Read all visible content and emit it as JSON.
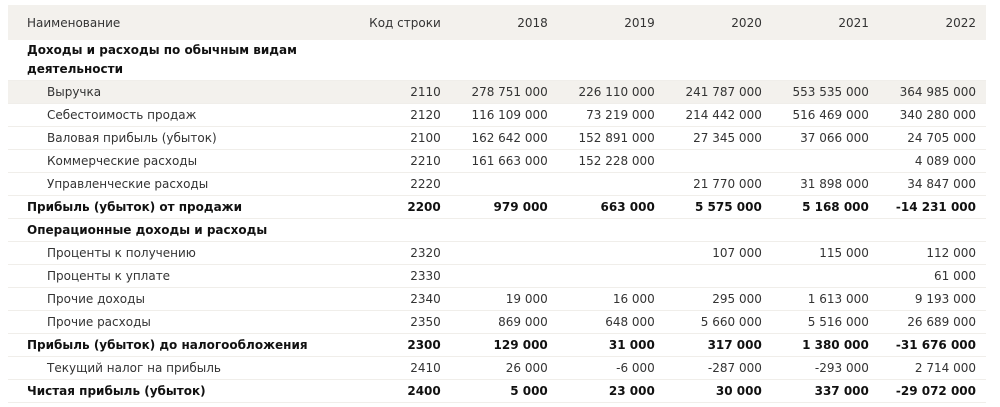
{
  "header": {
    "name": "Наименование",
    "code": "Код строки",
    "years": [
      "2018",
      "2019",
      "2020",
      "2021",
      "2022"
    ]
  },
  "rows": [
    {
      "type": "section",
      "name": "Доходы и расходы по обычным видам деятельности",
      "code": "",
      "values": [
        "",
        "",
        "",
        "",
        ""
      ]
    },
    {
      "type": "sub",
      "name": "Выручка",
      "code": "2110",
      "values": [
        "278 751 000",
        "226 110 000",
        "241 787 000",
        "553 535 000",
        "364 985 000"
      ]
    },
    {
      "type": "sub",
      "name": "Себестоимость продаж",
      "code": "2120",
      "values": [
        "116 109 000",
        "73 219 000",
        "214 442 000",
        "516 469 000",
        "340 280 000"
      ]
    },
    {
      "type": "sub",
      "name": "Валовая прибыль (убыток)",
      "code": "2100",
      "values": [
        "162 642 000",
        "152 891 000",
        "27 345 000",
        "37 066 000",
        "24 705 000"
      ]
    },
    {
      "type": "sub",
      "name": "Коммерческие расходы",
      "code": "2210",
      "values": [
        "161 663 000",
        "152 228 000",
        "",
        "",
        "4 089 000"
      ]
    },
    {
      "type": "sub",
      "name": "Управленческие расходы",
      "code": "2220",
      "values": [
        "",
        "",
        "21 770 000",
        "31 898 000",
        "34 847 000"
      ]
    },
    {
      "type": "bold",
      "name": "Прибыль (убыток) от продажи",
      "code": "2200",
      "values": [
        "979 000",
        "663 000",
        "5 575 000",
        "5 168 000",
        "-14 231 000"
      ]
    },
    {
      "type": "section",
      "name": "Операционные доходы и расходы",
      "code": "",
      "values": [
        "",
        "",
        "",
        "",
        ""
      ]
    },
    {
      "type": "sub",
      "name": "Проценты к получению",
      "code": "2320",
      "values": [
        "",
        "",
        "107 000",
        "115 000",
        "112 000"
      ]
    },
    {
      "type": "sub",
      "name": "Проценты к уплате",
      "code": "2330",
      "values": [
        "",
        "",
        "",
        "",
        "61 000"
      ]
    },
    {
      "type": "sub",
      "name": "Прочие доходы",
      "code": "2340",
      "values": [
        "19 000",
        "16 000",
        "295 000",
        "1 613 000",
        "9 193 000"
      ]
    },
    {
      "type": "sub",
      "name": "Прочие расходы",
      "code": "2350",
      "values": [
        "869 000",
        "648 000",
        "5 660 000",
        "5 516 000",
        "26 689 000"
      ]
    },
    {
      "type": "bold",
      "name": "Прибыль (убыток) до налогообложения",
      "code": "2300",
      "values": [
        "129 000",
        "31 000",
        "317 000",
        "1 380 000",
        "-31 676 000"
      ]
    },
    {
      "type": "sub",
      "name": "Текущий налог на прибыль",
      "code": "2410",
      "values": [
        "26 000",
        "-6 000",
        "-287 000",
        "-293 000",
        "2 714 000"
      ]
    },
    {
      "type": "bold",
      "name": "Чистая прибыль (убыток)",
      "code": "2400",
      "values": [
        "5 000",
        "23 000",
        "30 000",
        "337 000",
        "-29 072 000"
      ]
    }
  ]
}
